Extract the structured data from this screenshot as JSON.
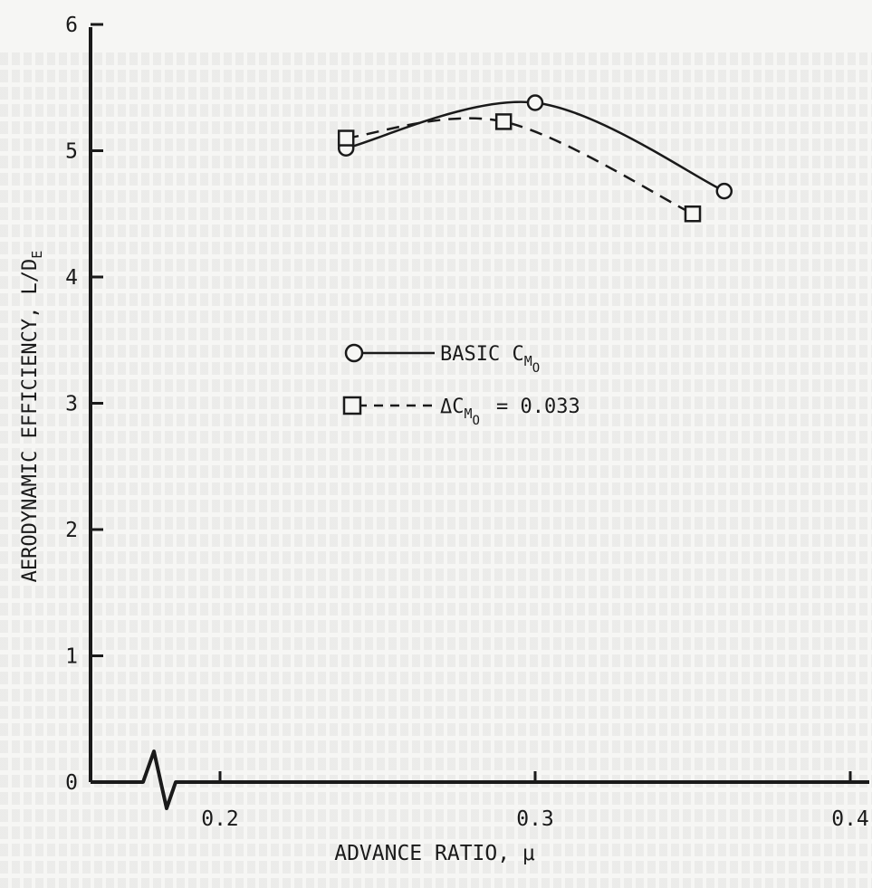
{
  "chart_data": {
    "type": "line",
    "title": "",
    "xlabel": "ADVANCE RATIO, μ",
    "ylabel": "AERODYNAMIC EFFICIENCY, L/D",
    "ylabel_sub": "E",
    "xlim": [
      0.15,
      0.4
    ],
    "ylim": [
      0,
      6
    ],
    "x_ticks": [
      "0.2",
      "0.3",
      "0.4"
    ],
    "x_tick_values": [
      0.2,
      0.3,
      0.4
    ],
    "y_ticks": [
      "0",
      "1",
      "2",
      "3",
      "4",
      "5",
      "6"
    ],
    "y_tick_values": [
      0,
      1,
      2,
      3,
      4,
      5,
      6
    ],
    "axis_break": "x-axis break between 0 and 0.2",
    "grid": false,
    "legend_position": "center",
    "series": [
      {
        "name": "BASIC C_MO",
        "legend_text": "BASIC C",
        "legend_sub": "M",
        "legend_subsub": "O",
        "marker": "circle",
        "line_style": "solid",
        "x": [
          0.24,
          0.3,
          0.36
        ],
        "y": [
          5.02,
          5.38,
          4.68
        ]
      },
      {
        "name": "ΔC_MO = 0.033",
        "legend_text": "ΔC",
        "legend_sub": "M",
        "legend_subsub": "O",
        "legend_suffix": "= 0.033",
        "marker": "square",
        "line_style": "dashed",
        "x": [
          0.24,
          0.29,
          0.35
        ],
        "y": [
          5.1,
          5.23,
          4.5
        ]
      }
    ]
  },
  "colors": {
    "ink": "#1a1a1a",
    "paper": "#f6f6f4"
  }
}
